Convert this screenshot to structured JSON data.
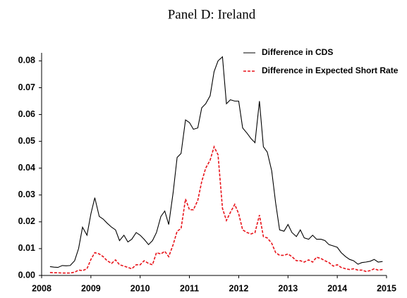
{
  "chart_data": {
    "type": "line",
    "title": "Panel D: Ireland",
    "x": [
      2008.17,
      2008.25,
      2008.33,
      2008.42,
      2008.5,
      2008.58,
      2008.67,
      2008.75,
      2008.83,
      2008.92,
      2009.0,
      2009.08,
      2009.17,
      2009.25,
      2009.33,
      2009.42,
      2009.5,
      2009.58,
      2009.67,
      2009.75,
      2009.83,
      2009.92,
      2010.0,
      2010.08,
      2010.17,
      2010.25,
      2010.33,
      2010.42,
      2010.5,
      2010.58,
      2010.67,
      2010.75,
      2010.83,
      2010.92,
      2011.0,
      2011.08,
      2011.17,
      2011.25,
      2011.33,
      2011.42,
      2011.5,
      2011.58,
      2011.67,
      2011.75,
      2011.83,
      2011.92,
      2012.0,
      2012.08,
      2012.17,
      2012.25,
      2012.33,
      2012.42,
      2012.5,
      2012.58,
      2012.67,
      2012.75,
      2012.83,
      2012.92,
      2013.0,
      2013.08,
      2013.17,
      2013.25,
      2013.33,
      2013.42,
      2013.5,
      2013.58,
      2013.67,
      2013.75,
      2013.83,
      2013.92,
      2014.0,
      2014.08,
      2014.17,
      2014.25,
      2014.33,
      2014.42,
      2014.5,
      2014.58,
      2014.67,
      2014.75,
      2014.83,
      2014.92
    ],
    "series": [
      {
        "name": "Difference in CDS",
        "color": "#000000",
        "dash": false,
        "values": [
          0.0033,
          0.0031,
          0.003,
          0.0037,
          0.0036,
          0.0037,
          0.0055,
          0.01,
          0.018,
          0.015,
          0.023,
          0.029,
          0.022,
          0.021,
          0.0195,
          0.018,
          0.017,
          0.013,
          0.015,
          0.0125,
          0.0135,
          0.016,
          0.015,
          0.0135,
          0.0115,
          0.013,
          0.016,
          0.022,
          0.024,
          0.019,
          0.031,
          0.044,
          0.0455,
          0.058,
          0.057,
          0.0545,
          0.055,
          0.0625,
          0.064,
          0.067,
          0.076,
          0.08,
          0.0815,
          0.064,
          0.0655,
          0.065,
          0.065,
          0.055,
          0.053,
          0.051,
          0.0495,
          0.065,
          0.048,
          0.046,
          0.039,
          0.027,
          0.017,
          0.0165,
          0.019,
          0.016,
          0.0145,
          0.017,
          0.014,
          0.0135,
          0.015,
          0.0135,
          0.0135,
          0.013,
          0.0115,
          0.011,
          0.0105,
          0.0085,
          0.007,
          0.006,
          0.0055,
          0.0042,
          0.0048,
          0.005,
          0.0053,
          0.006,
          0.005,
          0.0052
        ]
      },
      {
        "name": "Difference in Expected Short Rate",
        "color": "#e8141b",
        "dash": true,
        "values": [
          0.0011,
          0.001,
          0.001,
          0.0009,
          0.0009,
          0.0009,
          0.0012,
          0.002,
          0.0018,
          0.0025,
          0.006,
          0.0085,
          0.008,
          0.007,
          0.0055,
          0.0045,
          0.0058,
          0.004,
          0.0035,
          0.003,
          0.0025,
          0.004,
          0.004,
          0.0055,
          0.0045,
          0.004,
          0.0085,
          0.008,
          0.009,
          0.007,
          0.0115,
          0.0165,
          0.0175,
          0.0285,
          0.0245,
          0.0245,
          0.028,
          0.035,
          0.04,
          0.043,
          0.048,
          0.045,
          0.025,
          0.0205,
          0.0235,
          0.0265,
          0.023,
          0.017,
          0.016,
          0.0155,
          0.016,
          0.0225,
          0.0145,
          0.014,
          0.012,
          0.0085,
          0.0075,
          0.0075,
          0.008,
          0.007,
          0.0055,
          0.0055,
          0.005,
          0.0058,
          0.005,
          0.0068,
          0.0063,
          0.0055,
          0.0048,
          0.0035,
          0.004,
          0.003,
          0.0025,
          0.0022,
          0.0025,
          0.002,
          0.002,
          0.0015,
          0.0018,
          0.0025,
          0.002,
          0.0022
        ]
      }
    ],
    "xlim": [
      2008,
      2015
    ],
    "xticks": [
      2008,
      2009,
      2010,
      2011,
      2012,
      2013,
      2014,
      2015
    ],
    "ylim": [
      0,
      0.083
    ],
    "yticks": [
      {
        "value": 0,
        "label": "0.00"
      },
      {
        "value": 0.01,
        "label": "0.01"
      },
      {
        "value": 0.02,
        "label": "0.02"
      },
      {
        "value": 0.03,
        "label": "0.03"
      },
      {
        "value": 0.04,
        "label": "0.04"
      },
      {
        "value": 0.05,
        "label": "0.05"
      },
      {
        "value": 0.06,
        "label": "0.06"
      },
      {
        "value": 0.07,
        "label": "0.07"
      },
      {
        "value": 0.08,
        "label": "0.08"
      }
    ],
    "legend": "upper right"
  }
}
